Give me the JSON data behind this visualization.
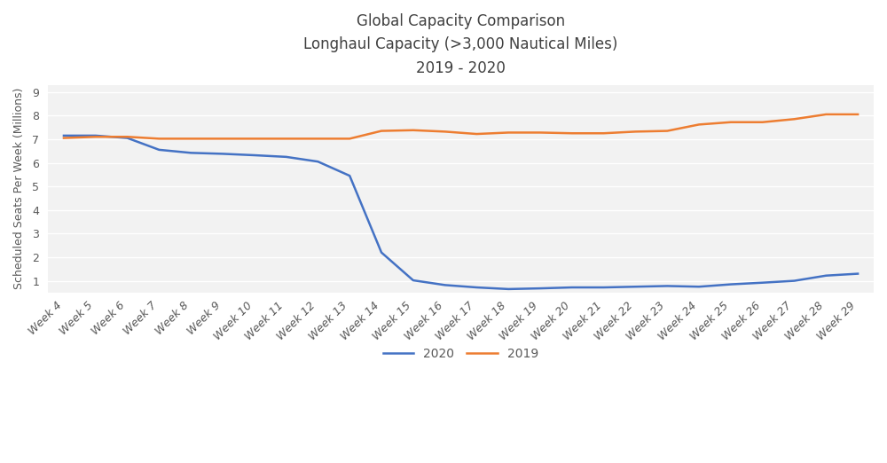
{
  "title_line1": "Global Capacity Comparison",
  "title_line2": "Longhaul Capacity (>3,000 Nautical Miles)",
  "title_line3": "2019 - 2020",
  "ylabel": "Scheduled Seats Per Week (Millions)",
  "weeks": [
    "Week 4",
    "Week 5",
    "Week 6",
    "Week 7",
    "Week 8",
    "Week 9",
    "Week 10",
    "Week 11",
    "Week 12",
    "Week 13",
    "Week 14",
    "Week 15",
    "Week 16",
    "Week 17",
    "Week 18",
    "Week 19",
    "Week 20",
    "Week 21",
    "Week 22",
    "Week 23",
    "Week 24",
    "Week 25",
    "Week 26",
    "Week 27",
    "Week 28",
    "Week 29"
  ],
  "data_2020": [
    7.15,
    7.15,
    7.05,
    6.55,
    6.42,
    6.38,
    6.32,
    6.25,
    6.05,
    5.45,
    2.2,
    1.02,
    0.82,
    0.72,
    0.65,
    0.68,
    0.72,
    0.72,
    0.75,
    0.78,
    0.75,
    0.85,
    0.92,
    1.0,
    1.22,
    1.3
  ],
  "data_2019": [
    7.05,
    7.1,
    7.1,
    7.02,
    7.02,
    7.02,
    7.02,
    7.02,
    7.02,
    7.02,
    7.35,
    7.38,
    7.32,
    7.22,
    7.28,
    7.28,
    7.25,
    7.25,
    7.32,
    7.35,
    7.62,
    7.72,
    7.72,
    7.85,
    8.05,
    8.05
  ],
  "color_2020": "#4472c4",
  "color_2019": "#ed7d31",
  "ylim_min": 0.5,
  "ylim_max": 9.3,
  "yticks": [
    1,
    2,
    3,
    4,
    5,
    6,
    7,
    8,
    9
  ],
  "background_color": "#ffffff",
  "plot_bg_color": "#f2f2f2",
  "grid_color": "#ffffff",
  "title_color": "#404040",
  "tick_color": "#595959",
  "legend_2020": "2020",
  "legend_2019": "2019",
  "title_fontsize": 12,
  "tick_fontsize": 9,
  "ylabel_fontsize": 9
}
